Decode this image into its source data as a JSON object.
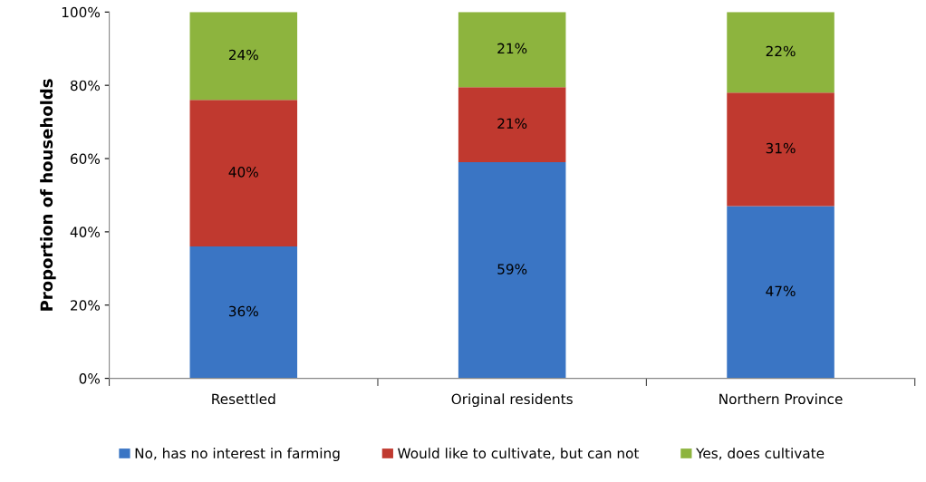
{
  "chart_data": {
    "type": "bar",
    "stacked": true,
    "ylabel": "Proportion of households",
    "categories": [
      "Resettled",
      "Original residents",
      "Northern Province"
    ],
    "series": [
      {
        "name": "No, has no interest in farming",
        "color": "#3a75c4",
        "values": [
          36,
          59,
          47
        ],
        "value_labels": [
          "36%",
          "59%",
          "47%"
        ]
      },
      {
        "name": "Would like to cultivate, but can not",
        "color": "#c0392f",
        "values": [
          40,
          20.5,
          31
        ],
        "value_labels": [
          "40%",
          "21%",
          "31%"
        ]
      },
      {
        "name": "Yes, does cultivate",
        "color": "#8db43e",
        "values": [
          24,
          20.5,
          22
        ],
        "value_labels": [
          "24%",
          "21%",
          "22%"
        ]
      }
    ],
    "ylim": [
      0,
      100
    ],
    "yticks": [
      {
        "value": 0,
        "label": "0%"
      },
      {
        "value": 20,
        "label": "20%"
      },
      {
        "value": 40,
        "label": "40%"
      },
      {
        "value": 60,
        "label": "60%"
      },
      {
        "value": 80,
        "label": "80%"
      },
      {
        "value": 100,
        "label": "100%"
      }
    ],
    "grid": false,
    "legend": "bottom"
  }
}
